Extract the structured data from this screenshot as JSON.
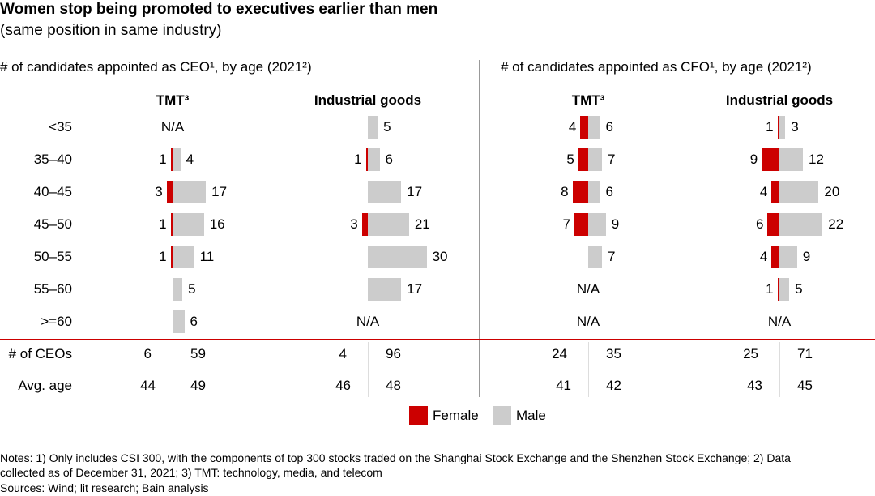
{
  "title": "Women stop being promoted to executives earlier than men",
  "subtitle": "(same position in same industry)",
  "colors": {
    "female": "#cc0000",
    "male": "#cccccc",
    "divider": "#cc0000"
  },
  "legend": {
    "female": "Female",
    "male": "Male"
  },
  "na_label": "N/A",
  "stats_labels": {
    "ceo_count": "# of CEOs",
    "avg_age": "Avg. age"
  },
  "chart_data": {
    "type": "bar",
    "subtype": "back-to-back horizontal bar (female left, male right)",
    "age_groups": [
      "<35",
      "35–40",
      "40–45",
      "45–50",
      "50–55",
      "55–60",
      ">=60"
    ],
    "panels": [
      {
        "section": "ceo",
        "title": "# of candidates appointed as CEO¹, by age (2021²)",
        "groups": [
          {
            "name": "TMT³",
            "female": [
              null,
              1,
              3,
              1,
              1,
              null,
              null
            ],
            "male": [
              null,
              4,
              17,
              16,
              11,
              5,
              6
            ],
            "na_rows": [
              0
            ],
            "count": {
              "female": 6,
              "male": 59
            },
            "avg_age": {
              "female": 44,
              "male": 49
            }
          },
          {
            "name": "Industrial goods",
            "female": [
              null,
              1,
              null,
              3,
              null,
              null,
              null
            ],
            "male": [
              5,
              6,
              17,
              21,
              30,
              17,
              null
            ],
            "na_rows": [
              6
            ],
            "count": {
              "female": 4,
              "male": 96
            },
            "avg_age": {
              "female": 46,
              "male": 48
            }
          }
        ]
      },
      {
        "section": "cfo",
        "title": "# of candidates appointed as CFO¹, by age (2021²)",
        "groups": [
          {
            "name": "TMT³",
            "female": [
              4,
              5,
              8,
              7,
              null,
              null,
              null
            ],
            "male": [
              6,
              7,
              6,
              9,
              7,
              null,
              null
            ],
            "na_rows": [
              5,
              6
            ],
            "count": {
              "female": 24,
              "male": 35
            },
            "avg_age": {
              "female": 41,
              "male": 42
            }
          },
          {
            "name": "Industrial goods",
            "female": [
              1,
              9,
              4,
              6,
              4,
              1,
              null
            ],
            "male": [
              3,
              12,
              20,
              22,
              9,
              5,
              null
            ],
            "na_rows": [
              6
            ],
            "count": {
              "female": 25,
              "male": 71
            },
            "avg_age": {
              "female": 43,
              "male": 45
            }
          }
        ]
      }
    ]
  },
  "notes": [
    "Notes: 1) Only includes CSI 300, with the components of top 300 stocks traded on the Shanghai Stock Exchange and the Shenzhen Stock Exchange; 2) Data",
    "collected as of December 31, 2021; 3) TMT: technology, media, and telecom",
    "Sources: Wind; lit research; Bain analysis"
  ]
}
